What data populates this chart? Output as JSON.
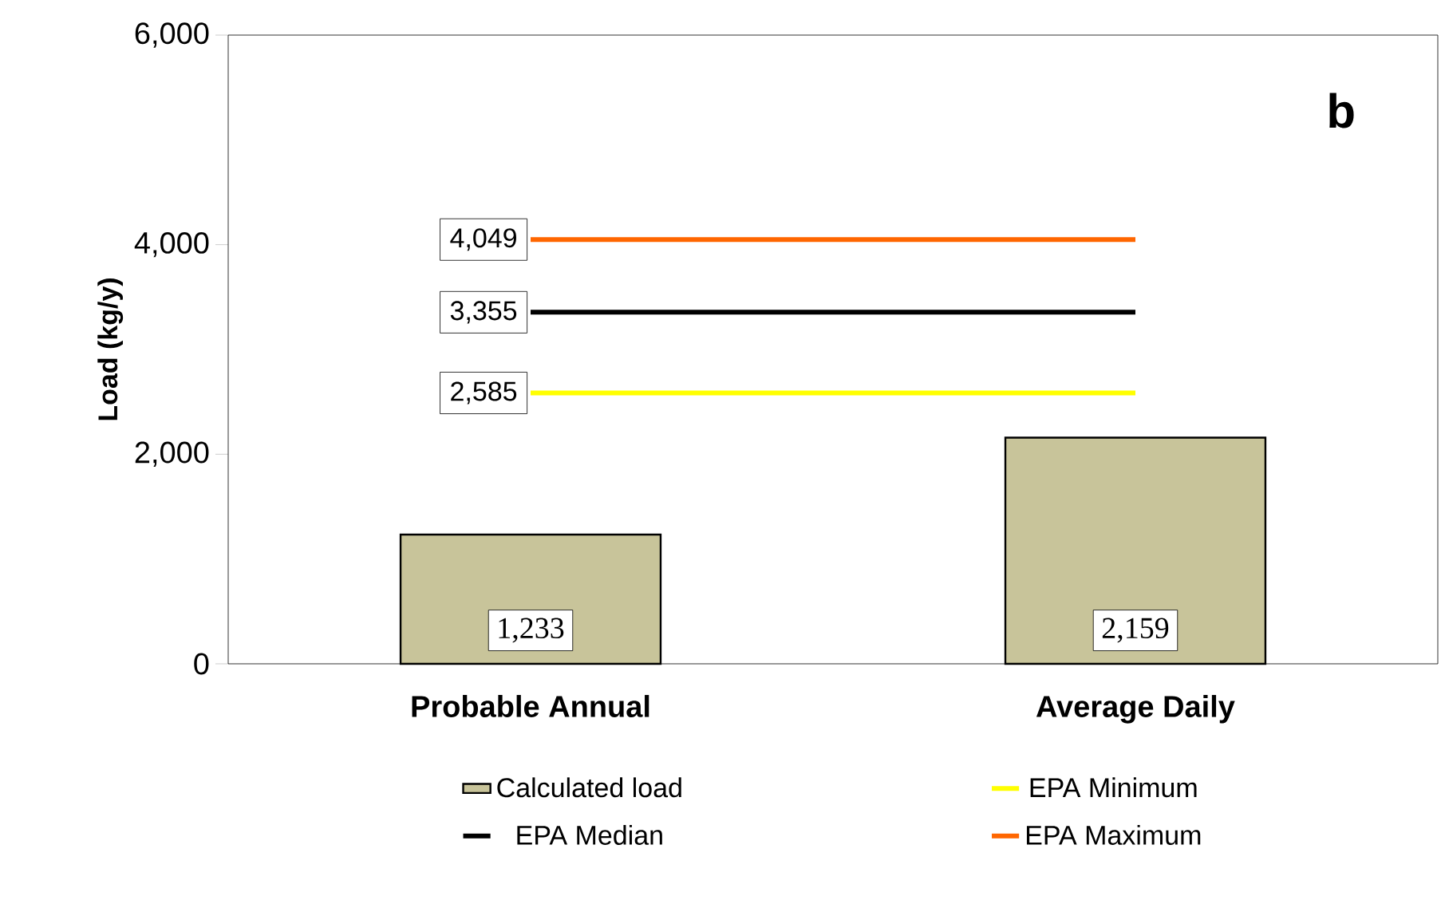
{
  "chart_data": {
    "type": "bar",
    "ylabel": "Load (kg/y)",
    "categories": [
      "Probable Annual",
      "Average Daily"
    ],
    "series": [
      {
        "name": "Calculated load",
        "color": "#c8c49a",
        "values": [
          1233,
          2159
        ],
        "value_labels": [
          "1,233",
          "2,159"
        ]
      },
      {
        "name": "EPA Minimum",
        "type": "line",
        "color": "#ffff00",
        "values": [
          2585,
          2585
        ],
        "value_labels": [
          "2,585",
          null
        ]
      },
      {
        "name": "EPA Median",
        "type": "line",
        "color": "#000000",
        "values": [
          3355,
          3355
        ],
        "value_labels": [
          "3,355",
          null
        ]
      },
      {
        "name": "EPA Maximum",
        "type": "line",
        "color": "#ff6600",
        "values": [
          4049,
          4049
        ],
        "value_labels": [
          "4,049",
          null
        ]
      }
    ],
    "ylim": [
      0,
      6000
    ],
    "yticks": [
      {
        "value": 0,
        "label": "0"
      },
      {
        "value": 2000,
        "label": "2,000"
      },
      {
        "value": 4000,
        "label": "4,000"
      },
      {
        "value": 6000,
        "label": "6,000"
      }
    ],
    "annotations": [
      "b"
    ],
    "legend": "bottom",
    "grid": false,
    "marker": "none"
  }
}
